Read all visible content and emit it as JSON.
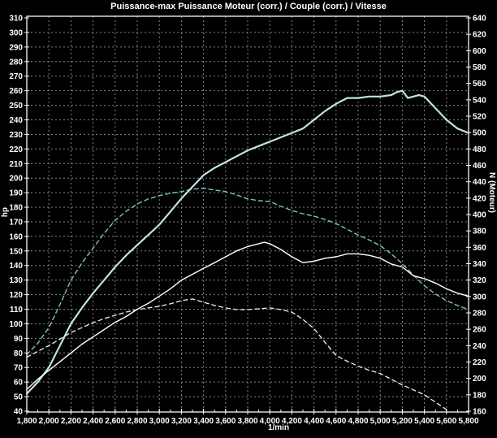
{
  "title": "Puissance-max Puissance Moteur (corr.) / Couple (corr.) / Vitesse",
  "colors": {
    "background": "#000000",
    "text": "#ffffff",
    "grid": "#858585",
    "plot_border": "#e8e8e8",
    "power_main": "#bfe3e3",
    "torque_main": "#7cc4c4",
    "power_secondary": "#ffffff",
    "torque_secondary": "#f0f0f0"
  },
  "chart_data": {
    "type": "line",
    "title": "Puissance-max Puissance Moteur (corr.) / Couple (corr.) / Vitesse",
    "grid": "dashed gray, vertical every 200 rpm, horizontal every 10 hp-units",
    "legend_position": "none",
    "x_axis": {
      "label": "1/min",
      "min": 1800,
      "max": 5800,
      "tick_step": 200,
      "minor_tick_step": 100,
      "tick_labels": [
        "1,800",
        "2,000",
        "2,200",
        "2,400",
        "2,600",
        "2,800",
        "3,000",
        "3,200",
        "3,400",
        "3,600",
        "3,800",
        "4,000",
        "4,200",
        "4,400",
        "4,600",
        "4,800",
        "5,000",
        "5,200",
        "5,400",
        "5,600",
        "5,800"
      ]
    },
    "left_axis": {
      "label": "hp",
      "min": 40,
      "max": 310,
      "tick_step": 10,
      "tick_labels": [
        "310",
        "300",
        "290",
        "280",
        "270",
        "260",
        "250",
        "240",
        "230",
        "220",
        "210",
        "200",
        "190",
        "180",
        "170",
        "160",
        "150",
        "140",
        "130",
        "120",
        "110",
        "100",
        "90",
        "80",
        "70",
        "60",
        "50",
        "40"
      ]
    },
    "right_axis": {
      "label": "N (Moteur)",
      "min": 160,
      "max": 640,
      "tick_step": 20,
      "tick_labels": [
        "640",
        "620",
        "600",
        "580",
        "560",
        "540",
        "520",
        "500",
        "480",
        "460",
        "440",
        "420",
        "400",
        "380",
        "360",
        "340",
        "320",
        "300",
        "280",
        "260",
        "240",
        "220",
        "200",
        "180",
        "160"
      ]
    },
    "series": [
      {
        "name": "power-corrected-main",
        "description": "Puissance Moteur (corr.) - thick pale cyan solid line, left axis (hp), peak ~260 hp @ 5,200 1/min",
        "axis": "left",
        "style": "solid",
        "color": "#bfe3e3",
        "width": 2.2,
        "points": [
          [
            1800,
            52
          ],
          [
            1900,
            60
          ],
          [
            2000,
            70
          ],
          [
            2100,
            85
          ],
          [
            2200,
            100
          ],
          [
            2300,
            111
          ],
          [
            2400,
            121
          ],
          [
            2500,
            130
          ],
          [
            2600,
            139
          ],
          [
            2700,
            147
          ],
          [
            2800,
            154
          ],
          [
            2900,
            161
          ],
          [
            3000,
            168
          ],
          [
            3100,
            177
          ],
          [
            3200,
            186
          ],
          [
            3300,
            194
          ],
          [
            3400,
            202
          ],
          [
            3500,
            207
          ],
          [
            3600,
            211
          ],
          [
            3700,
            215
          ],
          [
            3800,
            219
          ],
          [
            3900,
            222
          ],
          [
            4000,
            225
          ],
          [
            4100,
            228
          ],
          [
            4200,
            231
          ],
          [
            4300,
            234
          ],
          [
            4400,
            240
          ],
          [
            4500,
            246
          ],
          [
            4600,
            251
          ],
          [
            4700,
            255
          ],
          [
            4800,
            255
          ],
          [
            4900,
            256
          ],
          [
            5000,
            256
          ],
          [
            5100,
            257
          ],
          [
            5150,
            259
          ],
          [
            5200,
            260
          ],
          [
            5250,
            255
          ],
          [
            5300,
            256
          ],
          [
            5350,
            257
          ],
          [
            5400,
            256
          ],
          [
            5500,
            248
          ],
          [
            5600,
            240
          ],
          [
            5700,
            234
          ],
          [
            5800,
            231
          ]
        ]
      },
      {
        "name": "torque-corrected-main",
        "description": "Couple (corr.) - dashed cyan line, right axis (N), peak ~432 @ 3,400 1/min",
        "axis": "right",
        "style": "dashed",
        "color": "#7cc4c4",
        "width": 1.4,
        "points": [
          [
            1800,
            229
          ],
          [
            1900,
            243
          ],
          [
            2000,
            262
          ],
          [
            2100,
            290
          ],
          [
            2200,
            320
          ],
          [
            2300,
            341
          ],
          [
            2400,
            359
          ],
          [
            2500,
            377
          ],
          [
            2600,
            393
          ],
          [
            2700,
            404
          ],
          [
            2800,
            413
          ],
          [
            2900,
            419
          ],
          [
            3000,
            423
          ],
          [
            3100,
            426
          ],
          [
            3200,
            428
          ],
          [
            3300,
            431
          ],
          [
            3400,
            432
          ],
          [
            3500,
            430
          ],
          [
            3600,
            428
          ],
          [
            3700,
            424
          ],
          [
            3800,
            419
          ],
          [
            3900,
            417
          ],
          [
            4000,
            416
          ],
          [
            4100,
            410
          ],
          [
            4200,
            405
          ],
          [
            4300,
            401
          ],
          [
            4400,
            398
          ],
          [
            4500,
            394
          ],
          [
            4600,
            389
          ],
          [
            4700,
            382
          ],
          [
            4800,
            375
          ],
          [
            4900,
            369
          ],
          [
            5000,
            362
          ],
          [
            5100,
            352
          ],
          [
            5200,
            340
          ],
          [
            5300,
            326
          ],
          [
            5400,
            313
          ],
          [
            5500,
            303
          ],
          [
            5600,
            295
          ],
          [
            5700,
            289
          ],
          [
            5800,
            284
          ]
        ]
      },
      {
        "name": "power-secondary",
        "description": "second power run - white solid line, left axis (hp), peak ~156 hp @ 3,950 1/min",
        "axis": "left",
        "style": "solid",
        "color": "#ffffff",
        "width": 1.4,
        "points": [
          [
            1800,
            55
          ],
          [
            1900,
            62
          ],
          [
            2000,
            68
          ],
          [
            2100,
            74
          ],
          [
            2200,
            80
          ],
          [
            2300,
            86
          ],
          [
            2400,
            91
          ],
          [
            2500,
            96
          ],
          [
            2600,
            101
          ],
          [
            2700,
            105
          ],
          [
            2800,
            110
          ],
          [
            2900,
            114
          ],
          [
            3000,
            119
          ],
          [
            3100,
            124
          ],
          [
            3200,
            130
          ],
          [
            3300,
            134
          ],
          [
            3400,
            138
          ],
          [
            3500,
            142
          ],
          [
            3600,
            146
          ],
          [
            3700,
            150
          ],
          [
            3800,
            153
          ],
          [
            3900,
            155
          ],
          [
            3950,
            156
          ],
          [
            4000,
            155
          ],
          [
            4100,
            151
          ],
          [
            4200,
            146
          ],
          [
            4300,
            142
          ],
          [
            4400,
            143
          ],
          [
            4500,
            145
          ],
          [
            4600,
            146
          ],
          [
            4700,
            148
          ],
          [
            4800,
            148
          ],
          [
            4900,
            147
          ],
          [
            5000,
            145
          ],
          [
            5100,
            141
          ],
          [
            5200,
            139
          ],
          [
            5300,
            133
          ],
          [
            5400,
            131
          ],
          [
            5500,
            128
          ],
          [
            5600,
            124
          ],
          [
            5700,
            121
          ],
          [
            5800,
            119
          ]
        ]
      },
      {
        "name": "torque-secondary",
        "description": "second torque run - white dashed line, right axis (N), plateau ~290, ends ~162 @ 5,600 1/min",
        "axis": "right",
        "style": "dashed",
        "color": "#f0f0f0",
        "width": 1.3,
        "points": [
          [
            1800,
            226
          ],
          [
            1900,
            233
          ],
          [
            2000,
            240
          ],
          [
            2100,
            248
          ],
          [
            2200,
            256
          ],
          [
            2300,
            262
          ],
          [
            2400,
            268
          ],
          [
            2500,
            273
          ],
          [
            2600,
            277
          ],
          [
            2700,
            281
          ],
          [
            2800,
            284
          ],
          [
            2900,
            286
          ],
          [
            3000,
            288
          ],
          [
            3100,
            291
          ],
          [
            3200,
            295
          ],
          [
            3300,
            297
          ],
          [
            3400,
            293
          ],
          [
            3500,
            289
          ],
          [
            3600,
            286
          ],
          [
            3700,
            284
          ],
          [
            3800,
            284
          ],
          [
            3900,
            285
          ],
          [
            4000,
            286
          ],
          [
            4100,
            284
          ],
          [
            4200,
            281
          ],
          [
            4300,
            272
          ],
          [
            4400,
            261
          ],
          [
            4500,
            244
          ],
          [
            4600,
            228
          ],
          [
            4700,
            221
          ],
          [
            4800,
            215
          ],
          [
            4900,
            210
          ],
          [
            5000,
            206
          ],
          [
            5100,
            199
          ],
          [
            5200,
            192
          ],
          [
            5300,
            186
          ],
          [
            5400,
            180
          ],
          [
            5500,
            171
          ],
          [
            5600,
            162
          ]
        ]
      }
    ]
  }
}
